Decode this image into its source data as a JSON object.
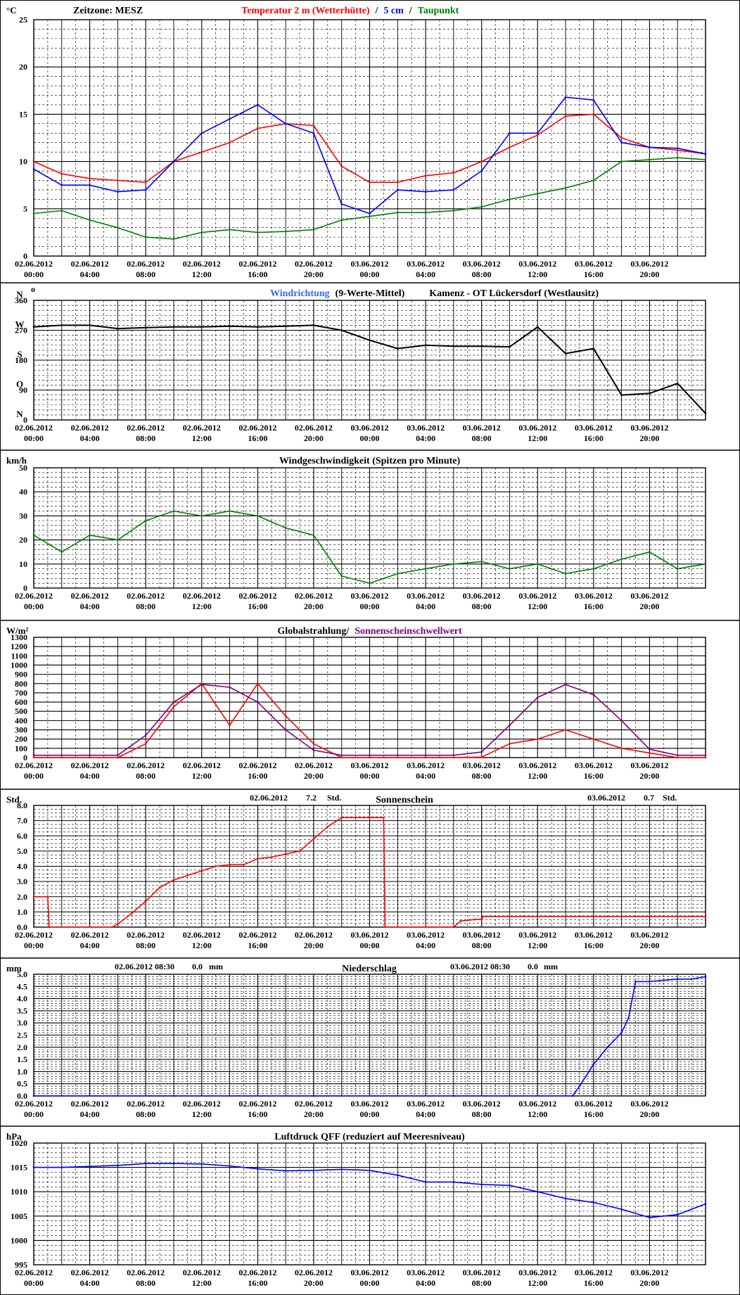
{
  "time_labels": [
    [
      "02.06.2012",
      "00:00"
    ],
    [
      "02.06.2012",
      "04:00"
    ],
    [
      "02.06.2012",
      "08:00"
    ],
    [
      "02.06.2012",
      "12:00"
    ],
    [
      "02.06.2012",
      "16:00"
    ],
    [
      "02.06.2012",
      "20:00"
    ],
    [
      "03.06.2012",
      "00:00"
    ],
    [
      "03.06.2012",
      "04:00"
    ],
    [
      "03.06.2012",
      "08:00"
    ],
    [
      "03.06.2012",
      "12:00"
    ],
    [
      "03.06.2012",
      "16:00"
    ],
    [
      "03.06.2012",
      "20:00"
    ]
  ],
  "colors": {
    "temp2m": "#ff0000",
    "temp5cm": "#0000ff",
    "dewpoint": "#008000",
    "wind_dir": "#3366ff",
    "wind_dir_avg": "#000000",
    "wind_speed": "#008000",
    "radiation": "#ff0000",
    "sunshine_threshold": "#800080",
    "sunshine": "#ff0000",
    "precip": "#0000ff",
    "pressure": "#0000ff"
  },
  "chart_data": [
    {
      "type": "line",
      "unit": "°C",
      "ylim": [
        0,
        25
      ],
      "yticks": [
        0,
        5,
        10,
        15,
        20,
        25
      ],
      "title_parts": [
        {
          "text": "Zeitzone: MESZ",
          "color": "#000000"
        },
        {
          "text": "Temperatur 2 m (Wetterhütte)",
          "color": "#ff0000"
        },
        {
          "text": "/",
          "color": "#000000"
        },
        {
          "text": "5 cm",
          "color": "#0000ff"
        },
        {
          "text": "/",
          "color": "#000000"
        },
        {
          "text": "Taupunkt",
          "color": "#008000"
        }
      ],
      "x_hours": [
        0,
        2,
        4,
        6,
        8,
        10,
        12,
        14,
        16,
        18,
        20,
        22,
        24,
        26,
        28,
        30,
        32,
        34,
        36,
        38,
        40,
        42,
        44,
        46,
        48
      ],
      "series": [
        {
          "name": "Temperatur 2 m (Wetterhütte)",
          "color": "#ff0000",
          "values": [
            10,
            8.7,
            8.2,
            8,
            7.8,
            10,
            11,
            12,
            13.5,
            14,
            13.8,
            9.5,
            7.8,
            7.8,
            8.5,
            8.8,
            10,
            11.5,
            12.8,
            14.8,
            15,
            12.5,
            11.5,
            11.2,
            10.8
          ]
        },
        {
          "name": "5 cm",
          "color": "#0000ff",
          "values": [
            9.2,
            7.5,
            7.5,
            6.8,
            7,
            10,
            13,
            14.5,
            16,
            14,
            13,
            5.5,
            4.5,
            7,
            6.8,
            7,
            9,
            13,
            13,
            16.8,
            16.5,
            12,
            11.5,
            11.4,
            10.8
          ]
        },
        {
          "name": "Taupunkt",
          "color": "#008000",
          "values": [
            4.5,
            4.8,
            3.8,
            3,
            2,
            1.8,
            2.5,
            2.8,
            2.5,
            2.6,
            2.8,
            3.8,
            4.2,
            4.6,
            4.6,
            4.8,
            5.2,
            6,
            6.6,
            7.2,
            8,
            10,
            10.2,
            10.4,
            10.2
          ]
        }
      ]
    },
    {
      "type": "line",
      "ylim": [
        0,
        360
      ],
      "yticks": [
        0,
        90,
        180,
        270,
        360
      ],
      "ytick_labels": {
        "0": "0",
        "90": "90",
        "180": "180",
        "270": "270",
        "360": "360"
      },
      "compass": [
        {
          "label": "N",
          "deg": 360
        },
        {
          "label": "W",
          "deg": 270
        },
        {
          "label": "S",
          "deg": 180
        },
        {
          "label": "O",
          "deg": 90
        },
        {
          "label": "N",
          "deg": 0
        }
      ],
      "title_parts": [
        {
          "text": "Windrichtung",
          "color": "#3366ff"
        },
        {
          "text": "(9-Werte-Mittel)",
          "color": "#000000"
        },
        {
          "text": "Kamenz - OT Lückersdorf (Westlausitz)",
          "color": "#000000"
        }
      ],
      "x_hours": [
        0,
        2,
        4,
        6,
        8,
        10,
        12,
        14,
        16,
        18,
        20,
        22,
        24,
        26,
        28,
        30,
        32,
        34,
        36,
        38,
        40,
        42,
        44,
        46,
        48
      ],
      "series": [
        {
          "name": "9-Werte-Mittel",
          "color": "#000000",
          "values": [
            280,
            285,
            285,
            275,
            278,
            280,
            280,
            282,
            280,
            282,
            285,
            270,
            240,
            215,
            225,
            222,
            222,
            220,
            280,
            200,
            215,
            75,
            80,
            110,
            20
          ]
        }
      ]
    },
    {
      "type": "line",
      "title": "Windgeschwindigkeit (Spitzen pro Minute)",
      "unit": "km/h",
      "ylim": [
        0,
        50
      ],
      "yticks": [
        0,
        10,
        20,
        30,
        40,
        50
      ],
      "x_hours": [
        0,
        2,
        4,
        6,
        8,
        10,
        12,
        14,
        16,
        18,
        20,
        22,
        24,
        26,
        28,
        30,
        32,
        34,
        36,
        38,
        40,
        42,
        44,
        46,
        48
      ],
      "series": [
        {
          "name": "Windgeschwindigkeit",
          "color": "#008000",
          "values": [
            22,
            15,
            22,
            20,
            28,
            32,
            30,
            32,
            30,
            25,
            22,
            5,
            2,
            6,
            8,
            10,
            11,
            8,
            10,
            6,
            8,
            12,
            15,
            8,
            10
          ]
        }
      ]
    },
    {
      "type": "line",
      "unit": "W/m²",
      "ylim": [
        0,
        1300
      ],
      "yticks": [
        0,
        100,
        200,
        300,
        400,
        500,
        600,
        700,
        800,
        900,
        1000,
        1100,
        1200,
        1300
      ],
      "title_parts": [
        {
          "text": "Globalstrahlung/",
          "color": "#000000"
        },
        {
          "text": "Sonnenscheinschwellwert",
          "color": "#800080"
        }
      ],
      "x_hours": [
        0,
        2,
        4,
        6,
        8,
        10,
        12,
        14,
        16,
        18,
        20,
        22,
        24,
        26,
        28,
        30,
        32,
        34,
        36,
        38,
        40,
        42,
        44,
        46,
        48
      ],
      "series": [
        {
          "name": "Globalstrahlung",
          "color": "#ff0000",
          "values": [
            0,
            0,
            0,
            0,
            150,
            550,
            800,
            350,
            800,
            450,
            150,
            0,
            0,
            0,
            0,
            0,
            5,
            150,
            200,
            300,
            200,
            100,
            50,
            0,
            0
          ]
        },
        {
          "name": "Sonnenscheinschwellwert",
          "color": "#800080",
          "values": [
            25,
            25,
            25,
            25,
            240,
            600,
            790,
            760,
            600,
            300,
            80,
            25,
            25,
            25,
            25,
            25,
            60,
            350,
            650,
            790,
            680,
            400,
            90,
            25,
            25
          ]
        }
      ]
    },
    {
      "type": "line",
      "title": "Sonnenschein",
      "unit": "Std.",
      "ylim": [
        0,
        8
      ],
      "yticks": [
        0,
        1,
        2,
        3,
        4,
        5,
        6,
        7,
        8
      ],
      "ytick_labels": [
        "0.0",
        "1.0",
        "2.0",
        "3.0",
        "4.0",
        "5.0",
        "6.0",
        "7.0",
        "8.0"
      ],
      "annotations": [
        [
          "02.06.2012",
          "7.2",
          "Std."
        ],
        [
          "03.06.2012",
          "0.7",
          "Std."
        ]
      ],
      "x_hours": [
        0,
        1,
        1.1,
        5.6,
        6,
        7,
        8,
        9,
        10,
        11,
        12,
        13,
        14,
        15,
        16,
        17,
        18,
        19,
        20,
        21,
        22,
        24,
        25,
        25.1,
        30,
        30.5,
        31.5,
        32,
        32.1,
        48
      ],
      "series": [
        {
          "name": "Sonnenschein",
          "color": "#ff0000",
          "values": [
            2,
            2,
            0,
            0,
            0.2,
            0.9,
            1.7,
            2.6,
            3.1,
            3.4,
            3.7,
            4,
            4.1,
            4.1,
            4.5,
            4.6,
            4.8,
            5,
            5.8,
            6.6,
            7.2,
            7.2,
            7.2,
            0,
            0,
            0.4,
            0.5,
            0.5,
            0.7,
            0.7
          ]
        }
      ]
    },
    {
      "type": "line",
      "title": "Niederschlag",
      "unit": "mm",
      "ylim": [
        0,
        5
      ],
      "yticks": [
        0,
        0.5,
        1,
        1.5,
        2,
        2.5,
        3,
        3.5,
        4,
        4.5,
        5
      ],
      "ytick_labels": [
        "0.0",
        "0.5",
        "1.0",
        "1.5",
        "2.0",
        "2.5",
        "3.0",
        "3.5",
        "4.0",
        "4.5",
        "5.0"
      ],
      "annotations": [
        [
          "02.06.2012 08:30",
          "0.0",
          "mm"
        ],
        [
          "03.06.2012 08:30",
          "0.0",
          "mm"
        ]
      ],
      "x_hours": [
        0,
        10,
        20,
        30,
        38.5,
        39,
        40,
        41,
        42,
        42.5,
        43,
        44,
        46,
        47,
        48
      ],
      "series": [
        {
          "name": "Niederschlag",
          "color": "#0000ff",
          "values": [
            0,
            0,
            0,
            0,
            0,
            0.4,
            1.3,
            2,
            2.6,
            3.2,
            4.7,
            4.7,
            4.8,
            4.8,
            4.9
          ]
        }
      ]
    },
    {
      "type": "line",
      "title": "Luftdruck QFF (reduziert auf Meeresniveau)",
      "unit": "hPa",
      "ylim": [
        995,
        1020
      ],
      "yticks": [
        995,
        1000,
        1005,
        1010,
        1015,
        1020
      ],
      "x_hours": [
        0,
        2,
        4,
        6,
        8,
        10,
        12,
        14,
        16,
        18,
        20,
        22,
        24,
        26,
        28,
        30,
        32,
        34,
        36,
        38,
        40,
        42,
        44,
        46,
        48
      ],
      "series": [
        {
          "name": "Luftdruck QFF",
          "color": "#0000ff",
          "values": [
            1015,
            1015,
            1015.2,
            1015.4,
            1015.8,
            1015.8,
            1015.7,
            1015.3,
            1014.7,
            1014.3,
            1014.4,
            1014.6,
            1014.4,
            1013.4,
            1012,
            1012,
            1011.5,
            1011.3,
            1010,
            1008.6,
            1007.8,
            1006.4,
            1004.7,
            1005.3,
            1007.5
          ]
        }
      ]
    }
  ]
}
